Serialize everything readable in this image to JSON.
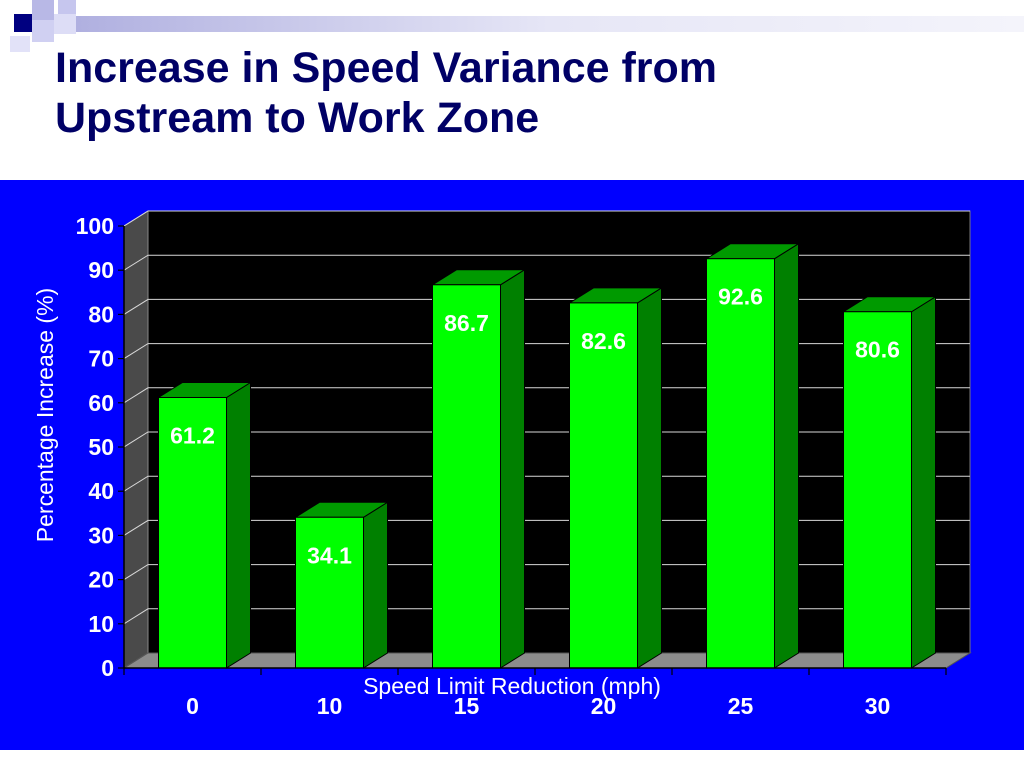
{
  "slide": {
    "title_line1": "Increase in Speed Variance from",
    "title_line2": "Upstream to Work Zone",
    "accent_color": "#000066",
    "panel_color": "#0000ff"
  },
  "chart_data": {
    "type": "bar",
    "categories": [
      "0",
      "10",
      "15",
      "20",
      "25",
      "30"
    ],
    "values": [
      61.2,
      34.1,
      86.7,
      82.6,
      92.6,
      80.6
    ],
    "data_labels": [
      "61.2",
      "34.1",
      "86.7",
      "82.6",
      "92.6",
      "80.6"
    ],
    "xlabel": "Speed Limit Reduction (mph)",
    "ylabel": "Percentage Increase (%)",
    "ylim": [
      0,
      100
    ],
    "yticks": [
      "0",
      "10",
      "20",
      "30",
      "40",
      "50",
      "60",
      "70",
      "80",
      "90",
      "100"
    ],
    "grid": true,
    "style": "3d",
    "bar_color": "#00ff00",
    "plot_background": "#000000"
  }
}
